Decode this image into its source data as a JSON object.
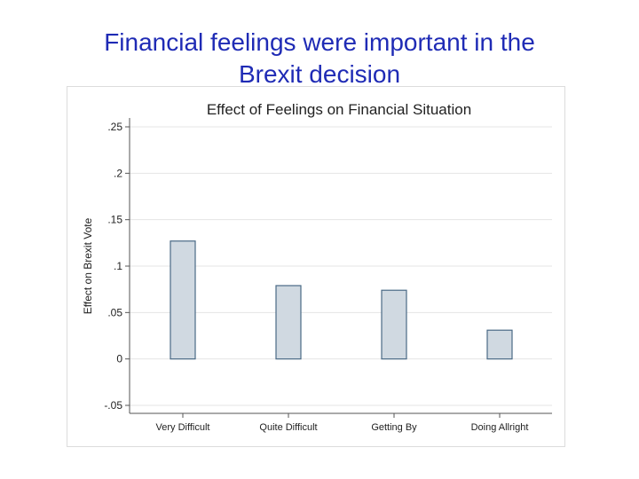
{
  "slide": {
    "title_line1": "Financial feelings were important in the",
    "title_line2": "Brexit decision",
    "title_color": "#1f2bb5"
  },
  "chart_data": {
    "type": "bar",
    "title": "Effect of Feelings on Financial Situation",
    "xlabel": "",
    "ylabel": "Effect on Brexit Vote",
    "categories": [
      "Very Difficult",
      "Quite Difficult",
      "Getting By",
      "Doing Allright"
    ],
    "values": [
      0.127,
      0.079,
      0.074,
      0.031
    ],
    "ylim": [
      -0.05,
      0.25
    ],
    "yticks": [
      -0.05,
      0,
      0.05,
      0.1,
      0.15,
      0.2,
      0.25
    ],
    "ytick_labels": [
      "-.05",
      "0",
      ".05",
      ".1",
      ".15",
      ".2",
      ".25"
    ],
    "grid": true,
    "bar_fill": "#d0d9e1",
    "bar_stroke": "#4a6a86"
  }
}
